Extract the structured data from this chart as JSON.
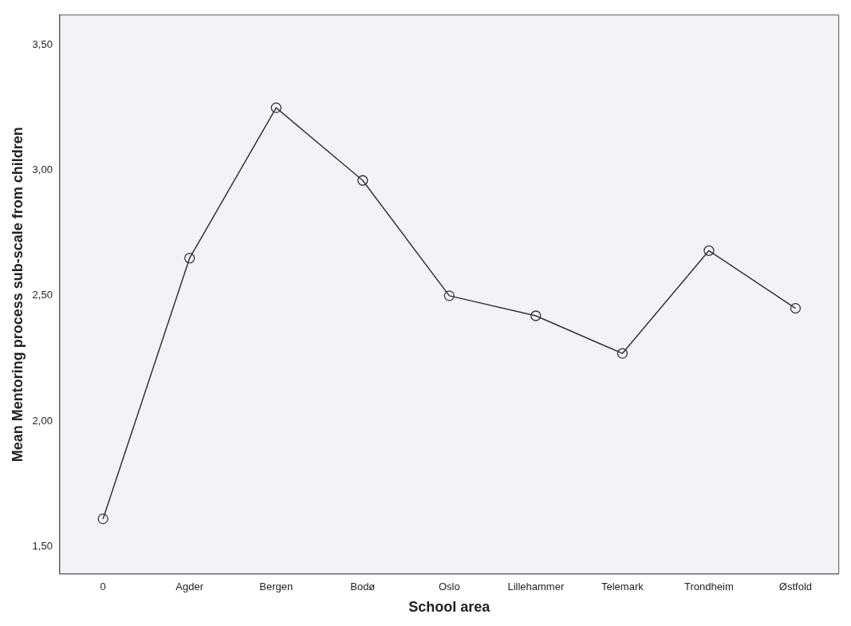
{
  "chart_data": {
    "type": "line",
    "xlabel": "School area",
    "ylabel": "Mean Mentoring process sub-scale from children",
    "categories": [
      "0",
      "Agder",
      "Bergen",
      "Bodø",
      "Oslo",
      "Lillehammer",
      "Telemark",
      "Trondheim",
      "Østfold"
    ],
    "series": [
      {
        "color": "#333333",
        "values": [
          1.61,
          2.65,
          3.25,
          2.96,
          2.5,
          2.42,
          2.27,
          2.68,
          2.45
        ]
      }
    ],
    "ylim": [
      1.39,
      3.62
    ],
    "yticks": [
      {
        "value": 1.5,
        "label": "1,50"
      },
      {
        "value": 2,
        "label": "2,00"
      },
      {
        "value": 2.5,
        "label": "2,50"
      },
      {
        "value": 3,
        "label": "3,00"
      },
      {
        "value": 3.5,
        "label": "3,50"
      }
    ],
    "grid": false,
    "legend": false,
    "marker": "circle",
    "line_style": "solid"
  }
}
